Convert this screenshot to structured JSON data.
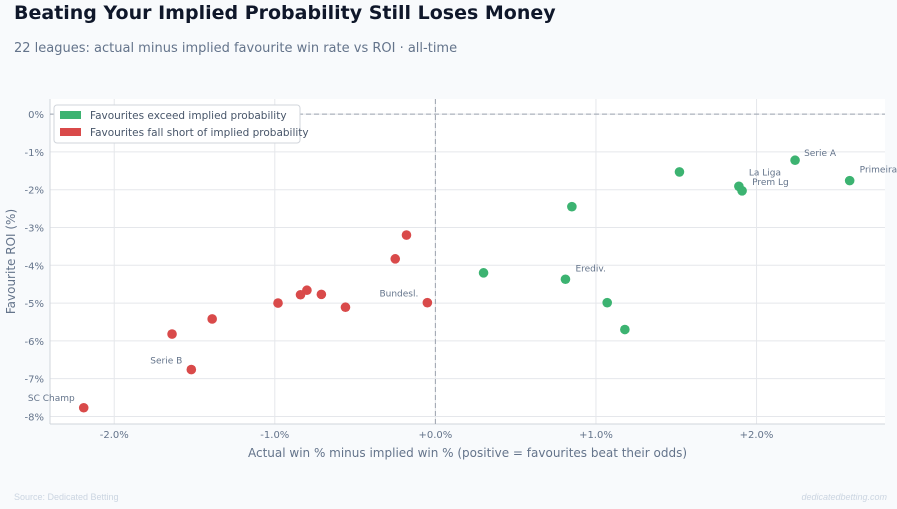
{
  "header": {
    "title": "Beating Your Implied Probability Still Loses Money",
    "subtitle": "22 leagues: actual minus implied favourite win rate vs ROI · all-time"
  },
  "footer": {
    "source": "Source: Dedicated Betting",
    "brand": "dedicatedbetting.com"
  },
  "colors": {
    "exceed": "#3cb371",
    "short": "#d94a4a",
    "grid": "#e5e7eb",
    "zero_line": "#9ca3af"
  },
  "chart_data": {
    "type": "scatter",
    "xlabel": "Actual win % minus implied win % (positive = favourites beat their odds)",
    "ylabel": "Favourite ROI (%)",
    "xlim": [
      -2.4,
      2.8
    ],
    "ylim": [
      -8.2,
      0.4
    ],
    "x_ticks": [
      -2,
      -1,
      0,
      1,
      2
    ],
    "x_tick_labels": [
      "-2.0%",
      "-1.0%",
      "+0.0%",
      "+1.0%",
      "+2.0%"
    ],
    "y_ticks": [
      0,
      -1,
      -2,
      -3,
      -4,
      -5,
      -6,
      -7,
      -8
    ],
    "y_tick_labels": [
      "0%",
      "-1%",
      "-2%",
      "-3%",
      "-4%",
      "-5%",
      "-6%",
      "-7%",
      "-8%"
    ],
    "grid": true,
    "legend_position": "top-left",
    "series": [
      {
        "name": "Favourites exceed implied probability",
        "color_key": "exceed",
        "points": [
          {
            "x": 2.24,
            "y": -1.22,
            "label": "Serie A"
          },
          {
            "x": 2.58,
            "y": -1.76,
            "label": "Primeira"
          },
          {
            "x": 1.89,
            "y": -1.91,
            "label": "La Liga"
          },
          {
            "x": 1.91,
            "y": -2.03,
            "label": "Prem Lg"
          },
          {
            "x": 1.52,
            "y": -1.53,
            "label": ""
          },
          {
            "x": 0.85,
            "y": -2.45,
            "label": ""
          },
          {
            "x": 0.3,
            "y": -4.2,
            "label": ""
          },
          {
            "x": 0.81,
            "y": -4.37,
            "label": "Erediv."
          },
          {
            "x": 1.07,
            "y": -4.99,
            "label": ""
          },
          {
            "x": 1.18,
            "y": -5.7,
            "label": ""
          }
        ]
      },
      {
        "name": "Favourites fall short of implied probability",
        "color_key": "short",
        "points": [
          {
            "x": -0.18,
            "y": -3.2,
            "label": ""
          },
          {
            "x": -0.25,
            "y": -3.83,
            "label": ""
          },
          {
            "x": -0.05,
            "y": -4.99,
            "label": "Bundesl."
          },
          {
            "x": -0.56,
            "y": -5.11,
            "label": ""
          },
          {
            "x": -0.71,
            "y": -4.77,
            "label": ""
          },
          {
            "x": -0.8,
            "y": -4.66,
            "label": ""
          },
          {
            "x": -0.84,
            "y": -4.78,
            "label": ""
          },
          {
            "x": -0.98,
            "y": -5.0,
            "label": ""
          },
          {
            "x": -1.39,
            "y": -5.42,
            "label": ""
          },
          {
            "x": -1.64,
            "y": -5.82,
            "label": ""
          },
          {
            "x": -1.52,
            "y": -6.76,
            "label": "Serie B"
          },
          {
            "x": -2.19,
            "y": -7.77,
            "label": "SC Champ"
          }
        ]
      }
    ]
  }
}
